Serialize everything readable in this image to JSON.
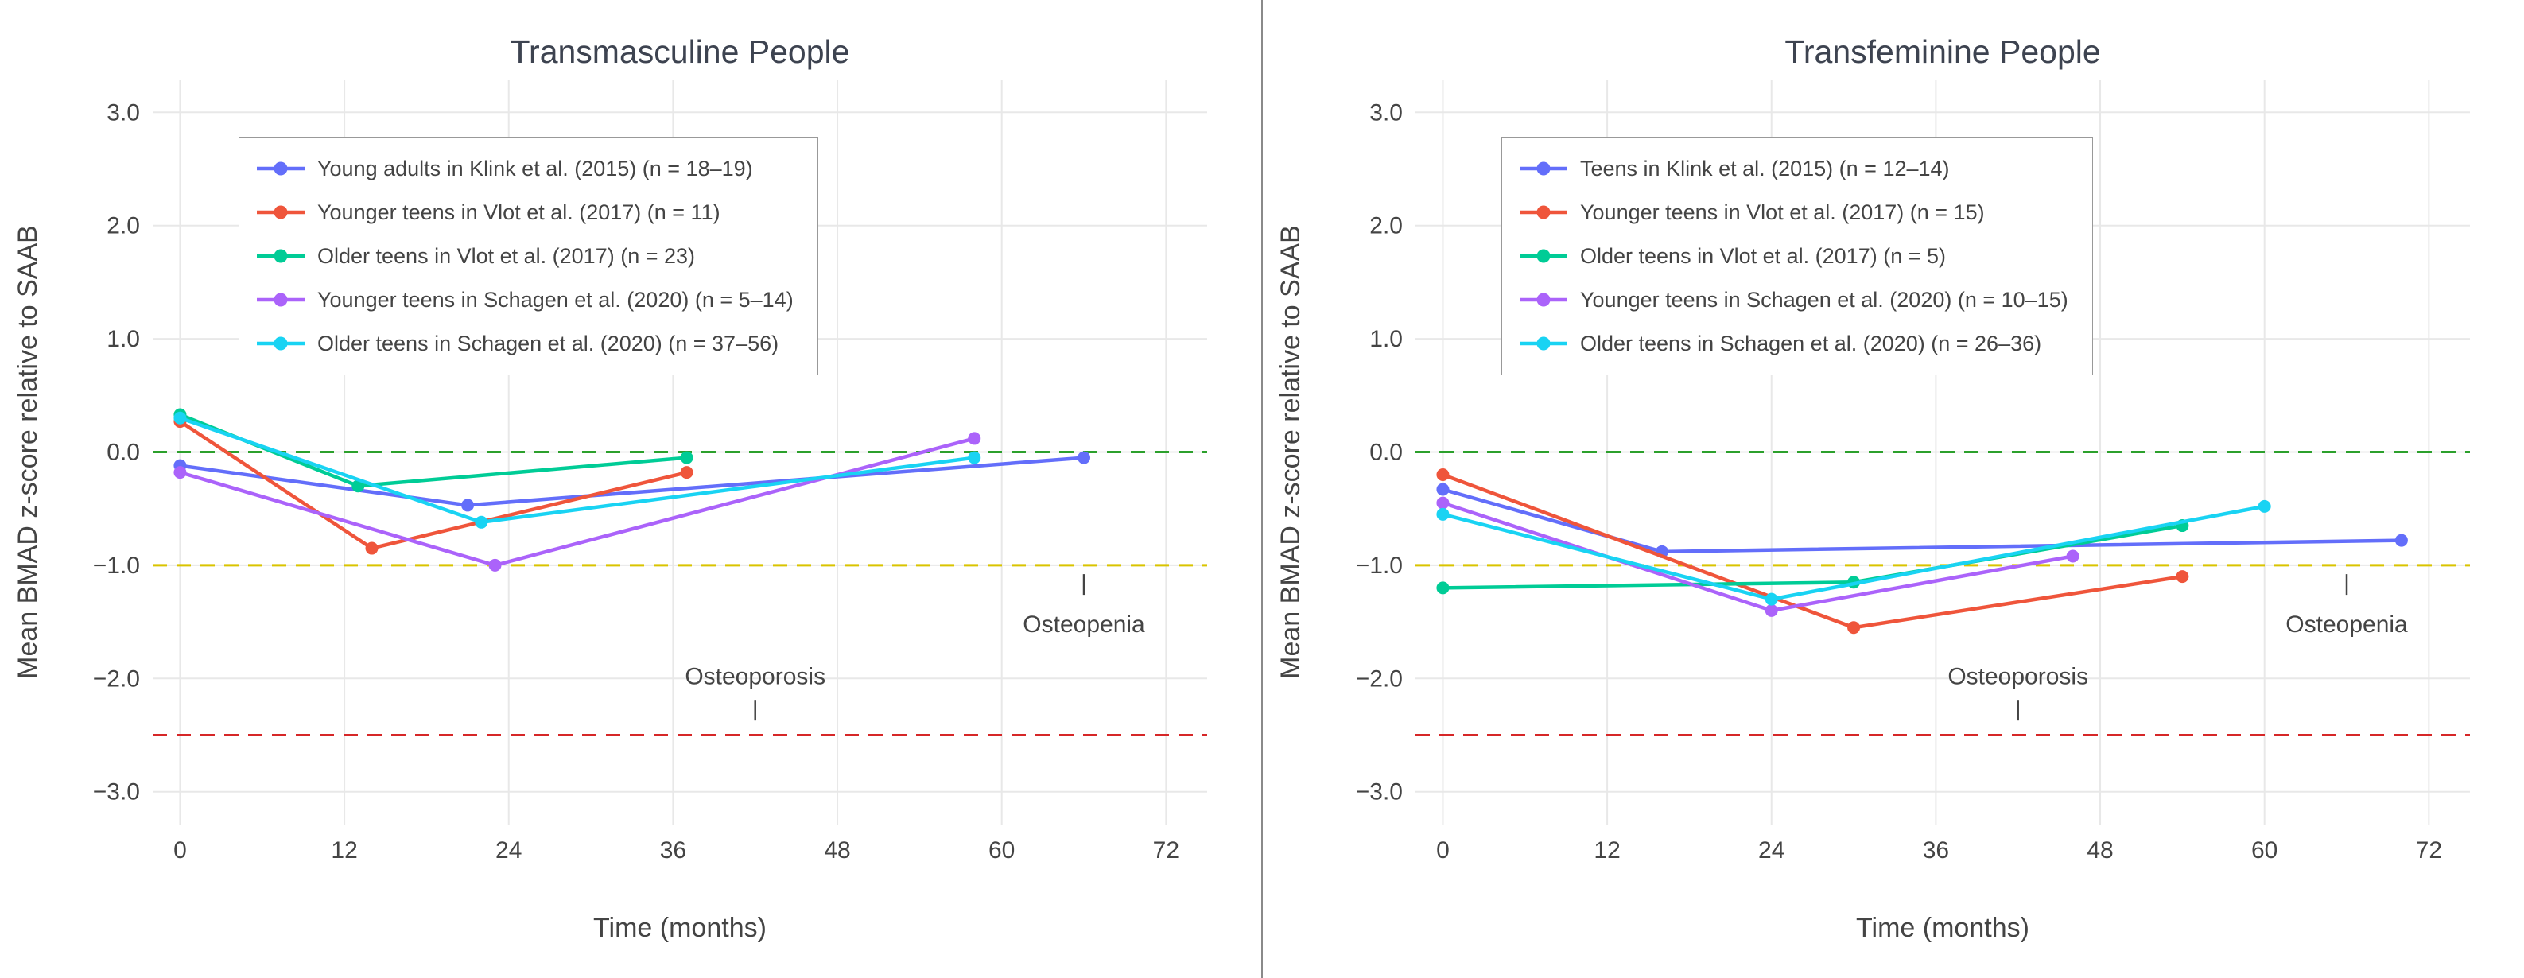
{
  "figure": {
    "background": "#ffffff",
    "divider_color": "#8a8a8a",
    "grid_color": "#e8e8e8",
    "text_color": "#444444"
  },
  "chart_data": [
    {
      "type": "line",
      "title": "Transmasculine People",
      "xlabel": "Time (months)",
      "ylabel": "Mean BMAD z-score relative to SAAB",
      "xlim": [
        -2,
        75
      ],
      "ylim": [
        -3.29,
        3.29
      ],
      "grid": true,
      "legend_position": "top-left",
      "xticks": [
        0,
        12,
        24,
        36,
        48,
        60,
        72
      ],
      "xtick_labels": [
        "0",
        "12",
        "24",
        "36",
        "48",
        "60",
        "72"
      ],
      "yticks": [
        3.0,
        2.0,
        1.0,
        0.0,
        -1.0,
        -2.0,
        -3.0
      ],
      "ytick_labels": [
        "3.0",
        "2.0",
        "1.0",
        "0.0",
        "−1.0",
        "−2.0",
        "−3.0"
      ],
      "reference_lines": [
        {
          "y": 0.0,
          "color": "#2ca02c",
          "style": "dashed"
        },
        {
          "y": -1.0,
          "color": "#d9c400",
          "style": "dashed"
        },
        {
          "y": -2.5,
          "color": "#d62728",
          "style": "dashed"
        }
      ],
      "annotations": [
        {
          "text": "Osteoporosis",
          "x": 42,
          "y": -1.98,
          "tick": {
            "x": 42,
            "y": -2.28
          }
        },
        {
          "text": "Osteopenia",
          "x": 66,
          "y": -1.52,
          "tick": {
            "x": 66,
            "y": -1.17
          }
        }
      ],
      "series": [
        {
          "name": "Young adults in Klink et al. (2015) (n = 18–19)",
          "color": "#636efa",
          "points": [
            [
              0,
              -0.12
            ],
            [
              21,
              -0.47
            ],
            [
              66,
              -0.05
            ]
          ]
        },
        {
          "name": "Younger teens in Vlot et al. (2017) (n = 11)",
          "color": "#ef553b",
          "points": [
            [
              0,
              0.27
            ],
            [
              14,
              -0.85
            ],
            [
              37,
              -0.18
            ]
          ]
        },
        {
          "name": "Older teens in Vlot et al. (2017) (n = 23)",
          "color": "#00cc96",
          "points": [
            [
              0,
              0.33
            ],
            [
              13,
              -0.3
            ],
            [
              37,
              -0.05
            ]
          ]
        },
        {
          "name": "Younger teens in Schagen et al. (2020) (n = 5–14)",
          "color": "#ab63fa",
          "points": [
            [
              0,
              -0.18
            ],
            [
              23,
              -1.0
            ],
            [
              58,
              0.12
            ]
          ]
        },
        {
          "name": "Older teens in Schagen et al. (2020) (n = 37–56)",
          "color": "#19d3f3",
          "points": [
            [
              0,
              0.3
            ],
            [
              22,
              -0.62
            ],
            [
              58,
              -0.05
            ]
          ]
        }
      ]
    },
    {
      "type": "line",
      "title": "Transfeminine People",
      "xlabel": "Time (months)",
      "ylabel": "Mean BMAD z-score relative to SAAB",
      "xlim": [
        -2,
        75
      ],
      "ylim": [
        -3.29,
        3.29
      ],
      "grid": true,
      "legend_position": "top-left",
      "xticks": [
        0,
        12,
        24,
        36,
        48,
        60,
        72
      ],
      "xtick_labels": [
        "0",
        "12",
        "24",
        "36",
        "48",
        "60",
        "72"
      ],
      "yticks": [
        3.0,
        2.0,
        1.0,
        0.0,
        -1.0,
        -2.0,
        -3.0
      ],
      "ytick_labels": [
        "3.0",
        "2.0",
        "1.0",
        "0.0",
        "−1.0",
        "−2.0",
        "−3.0"
      ],
      "reference_lines": [
        {
          "y": 0.0,
          "color": "#2ca02c",
          "style": "dashed"
        },
        {
          "y": -1.0,
          "color": "#d9c400",
          "style": "dashed"
        },
        {
          "y": -2.5,
          "color": "#d62728",
          "style": "dashed"
        }
      ],
      "annotations": [
        {
          "text": "Osteoporosis",
          "x": 42,
          "y": -1.98,
          "tick": {
            "x": 42,
            "y": -2.28
          }
        },
        {
          "text": "Osteopenia",
          "x": 66,
          "y": -1.52,
          "tick": {
            "x": 66,
            "y": -1.17
          }
        }
      ],
      "series": [
        {
          "name": "Teens in Klink et al. (2015) (n = 12–14)",
          "color": "#636efa",
          "points": [
            [
              0,
              -0.33
            ],
            [
              16,
              -0.88
            ],
            [
              70,
              -0.78
            ]
          ]
        },
        {
          "name": "Younger teens in Vlot et al. (2017) (n = 15)",
          "color": "#ef553b",
          "points": [
            [
              0,
              -0.2
            ],
            [
              30,
              -1.55
            ],
            [
              54,
              -1.1
            ]
          ]
        },
        {
          "name": "Older teens in Vlot et al. (2017) (n = 5)",
          "color": "#00cc96",
          "points": [
            [
              0,
              -1.2
            ],
            [
              30,
              -1.15
            ],
            [
              54,
              -0.65
            ]
          ]
        },
        {
          "name": "Younger teens in Schagen et al. (2020) (n = 10–15)",
          "color": "#ab63fa",
          "points": [
            [
              0,
              -0.45
            ],
            [
              24,
              -1.4
            ],
            [
              46,
              -0.92
            ]
          ]
        },
        {
          "name": "Older teens in Schagen et al. (2020) (n = 26–36)",
          "color": "#19d3f3",
          "points": [
            [
              0,
              -0.55
            ],
            [
              24,
              -1.3
            ],
            [
              60,
              -0.48
            ]
          ]
        }
      ]
    }
  ]
}
